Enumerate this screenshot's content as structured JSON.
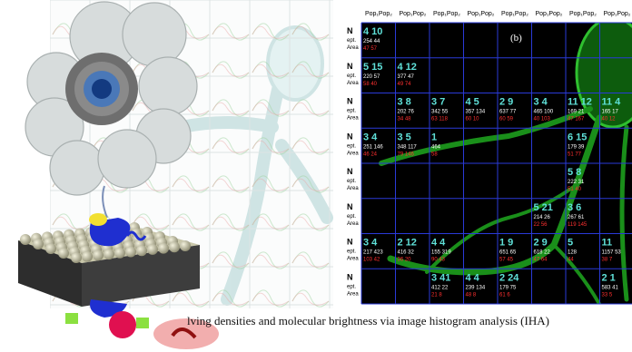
{
  "panel_b": {
    "label": "(b)",
    "column_header": "Pop₁Pop₂",
    "row_labels": {
      "n": "N",
      "ept": "ept.",
      "area": "Area"
    },
    "cells": [
      {
        "row": 0,
        "col": 0,
        "n": "4 10",
        "ept": "254 44",
        "area": "47 57"
      },
      {
        "row": 1,
        "col": 0,
        "n": "5 15",
        "ept": "220 57",
        "area": "58 40"
      },
      {
        "row": 1,
        "col": 1,
        "n": "4 12",
        "ept": "377 47",
        "area": "49 74"
      },
      {
        "row": 2,
        "col": 1,
        "n": "3 8",
        "ept": "202 76",
        "area": "34 48"
      },
      {
        "row": 2,
        "col": 2,
        "n": "3 7",
        "ept": "342 55",
        "area": "63 118"
      },
      {
        "row": 2,
        "col": 3,
        "n": "4 5",
        "ept": "357 134",
        "area": "60 10"
      },
      {
        "row": 2,
        "col": 4,
        "n": "2 9",
        "ept": "637 77",
        "area": "60 59"
      },
      {
        "row": 2,
        "col": 5,
        "n": "3 4",
        "ept": "465 100",
        "area": "40 103"
      },
      {
        "row": 2,
        "col": 6,
        "n": "11 12",
        "ept": "169 21",
        "area": "47 167"
      },
      {
        "row": 2,
        "col": 7,
        "n": "11 4",
        "ept": "165 17",
        "area": "40 12"
      },
      {
        "row": 3,
        "col": 0,
        "n": "3 4",
        "ept": "251 146",
        "area": "46 24"
      },
      {
        "row": 3,
        "col": 1,
        "n": "3 5",
        "ept": "348 117",
        "area": "79 146"
      },
      {
        "row": 3,
        "col": 2,
        "n": "1",
        "ept": "464",
        "area": "58"
      },
      {
        "row": 3,
        "col": 6,
        "n": "6 15",
        "ept": "179 39",
        "area": "51 77"
      },
      {
        "row": 4,
        "col": 6,
        "n": "5 8",
        "ept": "222 31",
        "area": "51 40"
      },
      {
        "row": 5,
        "col": 5,
        "n": "5 21",
        "ept": "214 26",
        "area": "22 56"
      },
      {
        "row": 5,
        "col": 6,
        "n": "3 6",
        "ept": "267 61",
        "area": "119 145"
      },
      {
        "row": 6,
        "col": 0,
        "n": "3 4",
        "ept": "217 423",
        "area": "103 42"
      },
      {
        "row": 6,
        "col": 1,
        "n": "2 12",
        "ept": "416 32",
        "area": "36 20"
      },
      {
        "row": 6,
        "col": 2,
        "n": "4 4",
        "ept": "155 319",
        "area": "90 43"
      },
      {
        "row": 6,
        "col": 4,
        "n": "1 9",
        "ept": "651 65",
        "area": "57 45"
      },
      {
        "row": 6,
        "col": 5,
        "n": "2 9",
        "ept": "618 22",
        "area": "47 64"
      },
      {
        "row": 6,
        "col": 6,
        "n": "5",
        "ept": "128",
        "area": "44"
      },
      {
        "row": 6,
        "col": 7,
        "n": "11",
        "ept": "1157 53",
        "area": "38 7"
      },
      {
        "row": 7,
        "col": 2,
        "n": "3 41",
        "ept": "412 22",
        "area": "21 8"
      },
      {
        "row": 7,
        "col": 3,
        "n": "4 4",
        "ept": "239 134",
        "area": "48 8"
      },
      {
        "row": 7,
        "col": 4,
        "n": "2 24",
        "ept": "179 75",
        "area": "61 6"
      },
      {
        "row": 7,
        "col": 7,
        "n": "2 1",
        "ept": "583 41",
        "area": "33 5"
      }
    ]
  },
  "caption": "lving densities and molecular brightness via image histogram analysis (IHA)"
}
